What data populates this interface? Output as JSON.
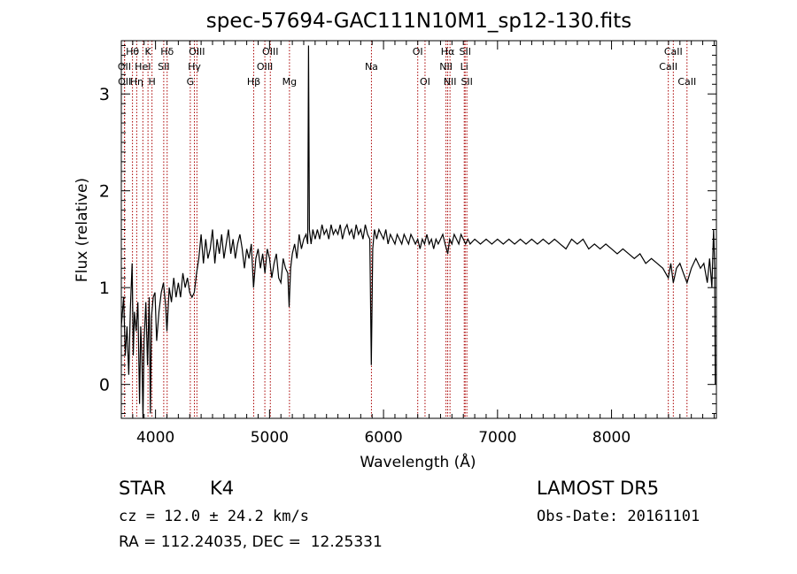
{
  "chart_data": {
    "type": "line",
    "title": "spec-57694-GAC111N10M1_sp12-130.fits",
    "xlabel": "Wavelength (Å)",
    "ylabel": "Flux (relative)",
    "xlim": [
      3700,
      8920
    ],
    "ylim": [
      -0.35,
      3.55
    ],
    "xticks": [
      4000,
      5000,
      6000,
      7000,
      8000
    ],
    "yticks": [
      0,
      1,
      2,
      3
    ],
    "grid": false,
    "line_color": "#000000",
    "marker_color": "#aa0000",
    "series": [
      {
        "points": [
          [
            3700,
            0.6
          ],
          [
            3720,
            0.9
          ],
          [
            3735,
            0.3
          ],
          [
            3750,
            0.6
          ],
          [
            3765,
            0.1
          ],
          [
            3780,
            0.8
          ],
          [
            3795,
            1.25
          ],
          [
            3805,
            0.3
          ],
          [
            3815,
            0.75
          ],
          [
            3830,
            0.55
          ],
          [
            3845,
            0.85
          ],
          [
            3860,
            -0.2
          ],
          [
            3870,
            0.6
          ],
          [
            3880,
            0.3
          ],
          [
            3890,
            -0.35
          ],
          [
            3900,
            0.45
          ],
          [
            3915,
            0.85
          ],
          [
            3930,
            0.2
          ],
          [
            3945,
            0.9
          ],
          [
            3955,
            -0.3
          ],
          [
            3965,
            0.7
          ],
          [
            3980,
            0.9
          ],
          [
            3995,
            0.95
          ],
          [
            4010,
            0.45
          ],
          [
            4030,
            0.75
          ],
          [
            4050,
            0.95
          ],
          [
            4070,
            1.05
          ],
          [
            4090,
            0.8
          ],
          [
            4100,
            0.55
          ],
          [
            4120,
            1.0
          ],
          [
            4140,
            0.85
          ],
          [
            4160,
            1.1
          ],
          [
            4180,
            0.9
          ],
          [
            4200,
            1.05
          ],
          [
            4220,
            0.9
          ],
          [
            4240,
            1.15
          ],
          [
            4260,
            1.0
          ],
          [
            4280,
            1.1
          ],
          [
            4300,
            0.95
          ],
          [
            4320,
            0.9
          ],
          [
            4340,
            0.95
          ],
          [
            4360,
            1.15
          ],
          [
            4380,
            1.3
          ],
          [
            4400,
            1.55
          ],
          [
            4420,
            1.25
          ],
          [
            4440,
            1.5
          ],
          [
            4460,
            1.3
          ],
          [
            4480,
            1.4
          ],
          [
            4500,
            1.6
          ],
          [
            4520,
            1.25
          ],
          [
            4540,
            1.5
          ],
          [
            4560,
            1.35
          ],
          [
            4580,
            1.55
          ],
          [
            4600,
            1.3
          ],
          [
            4620,
            1.45
          ],
          [
            4640,
            1.6
          ],
          [
            4660,
            1.35
          ],
          [
            4680,
            1.5
          ],
          [
            4700,
            1.3
          ],
          [
            4720,
            1.45
          ],
          [
            4740,
            1.55
          ],
          [
            4760,
            1.4
          ],
          [
            4780,
            1.2
          ],
          [
            4800,
            1.4
          ],
          [
            4820,
            1.3
          ],
          [
            4840,
            1.45
          ],
          [
            4860,
            1.0
          ],
          [
            4880,
            1.3
          ],
          [
            4900,
            1.4
          ],
          [
            4920,
            1.2
          ],
          [
            4940,
            1.35
          ],
          [
            4960,
            1.15
          ],
          [
            4980,
            1.4
          ],
          [
            5000,
            1.3
          ],
          [
            5020,
            1.1
          ],
          [
            5040,
            1.25
          ],
          [
            5060,
            1.35
          ],
          [
            5080,
            1.1
          ],
          [
            5100,
            1.05
          ],
          [
            5120,
            1.3
          ],
          [
            5140,
            1.2
          ],
          [
            5160,
            1.15
          ],
          [
            5172,
            0.8
          ],
          [
            5185,
            1.2
          ],
          [
            5200,
            1.35
          ],
          [
            5220,
            1.45
          ],
          [
            5240,
            1.3
          ],
          [
            5260,
            1.55
          ],
          [
            5280,
            1.4
          ],
          [
            5300,
            1.5
          ],
          [
            5320,
            1.55
          ],
          [
            5335,
            1.45
          ],
          [
            5342,
            3.5
          ],
          [
            5350,
            1.6
          ],
          [
            5365,
            1.45
          ],
          [
            5380,
            1.6
          ],
          [
            5400,
            1.5
          ],
          [
            5420,
            1.6
          ],
          [
            5440,
            1.5
          ],
          [
            5460,
            1.65
          ],
          [
            5480,
            1.55
          ],
          [
            5500,
            1.6
          ],
          [
            5520,
            1.5
          ],
          [
            5540,
            1.65
          ],
          [
            5560,
            1.55
          ],
          [
            5580,
            1.6
          ],
          [
            5600,
            1.55
          ],
          [
            5620,
            1.65
          ],
          [
            5640,
            1.5
          ],
          [
            5660,
            1.6
          ],
          [
            5680,
            1.65
          ],
          [
            5700,
            1.55
          ],
          [
            5720,
            1.6
          ],
          [
            5740,
            1.5
          ],
          [
            5760,
            1.65
          ],
          [
            5780,
            1.55
          ],
          [
            5800,
            1.6
          ],
          [
            5820,
            1.5
          ],
          [
            5840,
            1.65
          ],
          [
            5860,
            1.55
          ],
          [
            5880,
            1.5
          ],
          [
            5893,
            0.2
          ],
          [
            5905,
            1.4
          ],
          [
            5920,
            1.6
          ],
          [
            5940,
            1.5
          ],
          [
            5960,
            1.6
          ],
          [
            5980,
            1.55
          ],
          [
            6000,
            1.5
          ],
          [
            6020,
            1.6
          ],
          [
            6040,
            1.45
          ],
          [
            6060,
            1.55
          ],
          [
            6080,
            1.5
          ],
          [
            6100,
            1.45
          ],
          [
            6120,
            1.55
          ],
          [
            6140,
            1.5
          ],
          [
            6160,
            1.45
          ],
          [
            6180,
            1.55
          ],
          [
            6200,
            1.5
          ],
          [
            6220,
            1.45
          ],
          [
            6240,
            1.55
          ],
          [
            6260,
            1.5
          ],
          [
            6280,
            1.45
          ],
          [
            6300,
            1.5
          ],
          [
            6320,
            1.4
          ],
          [
            6340,
            1.5
          ],
          [
            6360,
            1.45
          ],
          [
            6380,
            1.55
          ],
          [
            6400,
            1.45
          ],
          [
            6420,
            1.5
          ],
          [
            6440,
            1.4
          ],
          [
            6460,
            1.5
          ],
          [
            6480,
            1.45
          ],
          [
            6500,
            1.5
          ],
          [
            6520,
            1.55
          ],
          [
            6540,
            1.45
          ],
          [
            6563,
            1.35
          ],
          [
            6580,
            1.5
          ],
          [
            6600,
            1.45
          ],
          [
            6620,
            1.55
          ],
          [
            6640,
            1.5
          ],
          [
            6660,
            1.45
          ],
          [
            6680,
            1.55
          ],
          [
            6700,
            1.5
          ],
          [
            6720,
            1.45
          ],
          [
            6740,
            1.5
          ],
          [
            6760,
            1.45
          ],
          [
            6800,
            1.5
          ],
          [
            6850,
            1.45
          ],
          [
            6900,
            1.5
          ],
          [
            6950,
            1.45
          ],
          [
            7000,
            1.5
          ],
          [
            7050,
            1.45
          ],
          [
            7100,
            1.5
          ],
          [
            7150,
            1.45
          ],
          [
            7200,
            1.5
          ],
          [
            7250,
            1.45
          ],
          [
            7300,
            1.5
          ],
          [
            7350,
            1.45
          ],
          [
            7400,
            1.5
          ],
          [
            7450,
            1.45
          ],
          [
            7500,
            1.5
          ],
          [
            7550,
            1.45
          ],
          [
            7600,
            1.4
          ],
          [
            7650,
            1.5
          ],
          [
            7700,
            1.45
          ],
          [
            7750,
            1.5
          ],
          [
            7800,
            1.4
          ],
          [
            7850,
            1.45
          ],
          [
            7900,
            1.4
          ],
          [
            7950,
            1.45
          ],
          [
            8000,
            1.4
          ],
          [
            8050,
            1.35
          ],
          [
            8100,
            1.4
          ],
          [
            8150,
            1.35
          ],
          [
            8200,
            1.3
          ],
          [
            8250,
            1.35
          ],
          [
            8300,
            1.25
          ],
          [
            8350,
            1.3
          ],
          [
            8400,
            1.25
          ],
          [
            8450,
            1.2
          ],
          [
            8498,
            1.1
          ],
          [
            8520,
            1.25
          ],
          [
            8542,
            1.05
          ],
          [
            8570,
            1.2
          ],
          [
            8600,
            1.25
          ],
          [
            8630,
            1.15
          ],
          [
            8662,
            1.05
          ],
          [
            8700,
            1.2
          ],
          [
            8740,
            1.3
          ],
          [
            8780,
            1.2
          ],
          [
            8810,
            1.25
          ],
          [
            8840,
            1.05
          ],
          [
            8860,
            1.3
          ],
          [
            8880,
            1.0
          ],
          [
            8895,
            1.6
          ],
          [
            8905,
            1.2
          ],
          [
            8910,
            0.0
          ]
        ]
      }
    ],
    "line_markers": [
      {
        "label": "Hθ",
        "x": 3798,
        "row": 0
      },
      {
        "label": "OII",
        "x": 3727,
        "row": 1
      },
      {
        "label": "OII",
        "x": 3729,
        "row": 2
      },
      {
        "label": "Hη",
        "x": 3835,
        "row": 2
      },
      {
        "label": "HeI",
        "x": 3889,
        "row": 1
      },
      {
        "label": "K",
        "x": 3934,
        "row": 0
      },
      {
        "label": "H",
        "x": 3969,
        "row": 2
      },
      {
        "label": "Hδ",
        "x": 4102,
        "row": 0
      },
      {
        "label": "SII",
        "x": 4072,
        "row": 1
      },
      {
        "label": "OIII",
        "x": 4363,
        "row": 0
      },
      {
        "label": "Hγ",
        "x": 4341,
        "row": 1
      },
      {
        "label": "G",
        "x": 4305,
        "row": 2
      },
      {
        "label": "OIII",
        "x": 5007,
        "row": 0
      },
      {
        "label": "OIII",
        "x": 4959,
        "row": 1
      },
      {
        "label": "Hβ",
        "x": 4861,
        "row": 2
      },
      {
        "label": "Mg",
        "x": 5175,
        "row": 2
      },
      {
        "label": "Na",
        "x": 5894,
        "row": 1
      },
      {
        "label": "OI",
        "x": 6300,
        "row": 0
      },
      {
        "label": "OI",
        "x": 6364,
        "row": 2
      },
      {
        "label": "Hα",
        "x": 6563,
        "row": 0
      },
      {
        "label": "NII",
        "x": 6548,
        "row": 1
      },
      {
        "label": "NII",
        "x": 6583,
        "row": 2
      },
      {
        "label": "SII",
        "x": 6716,
        "row": 0
      },
      {
        "label": "Li",
        "x": 6708,
        "row": 1
      },
      {
        "label": "SII",
        "x": 6731,
        "row": 2
      },
      {
        "label": "CaII",
        "x": 8542,
        "row": 0
      },
      {
        "label": "CaII",
        "x": 8498,
        "row": 1
      },
      {
        "label": "CaII",
        "x": 8662,
        "row": 2
      }
    ]
  },
  "info": {
    "class": "STAR",
    "subclass": "K4",
    "survey": "LAMOST DR5",
    "cz": "cz = 12.0 ± 24.2 km/s",
    "obs_date": "Obs-Date: 20161101",
    "radec": "RA = 112.24035, DEC =  12.25331"
  }
}
